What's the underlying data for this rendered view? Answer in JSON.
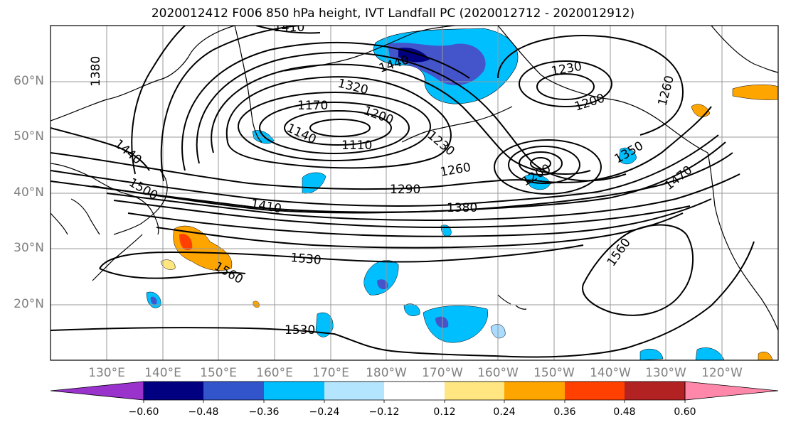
{
  "title": "2020012412 F006 850 hPa height, IVT Landfall PC (2020012712 - 2020012912)",
  "lat_labels": [
    "60°N",
    "50°N",
    "40°N",
    "30°N",
    "20°N"
  ],
  "lon_labels": [
    "130°E",
    "140°E",
    "150°E",
    "160°E",
    "170°E",
    "180°W",
    "170°W",
    "160°W",
    "150°W",
    "140°W",
    "130°W",
    "120°W"
  ],
  "contour_labels": [
    "1410",
    "1380",
    "1440",
    "1320",
    "1170",
    "1200",
    "1140",
    "1110",
    "1230",
    "1230",
    "1200",
    "1260",
    "1440",
    "1500",
    "1260",
    "1290",
    "1200",
    "1350",
    "1470",
    "1410",
    "1380",
    "1530",
    "1560",
    "1560",
    "1530"
  ],
  "colorbar": {
    "tick_labels": [
      "−0.60",
      "−0.48",
      "−0.36",
      "−0.24",
      "−0.12",
      "0.12",
      "0.24",
      "0.36",
      "0.48",
      "0.60"
    ],
    "colors": [
      "#9933cc",
      "#000080",
      "#3355cc",
      "#00bfff",
      "#b3e5ff",
      "#ffffff",
      "#ffe680",
      "#ffa500",
      "#ff4000",
      "#b22222",
      "#ff88aa"
    ]
  },
  "fill_colors": {
    "neg_strong": "#4455cc",
    "neg_mid": "#00bfff",
    "neg_weak": "#aadcff",
    "pos_weak": "#ffe680",
    "pos_mid": "#ffa500",
    "pos_strong": "#ff4000"
  }
}
